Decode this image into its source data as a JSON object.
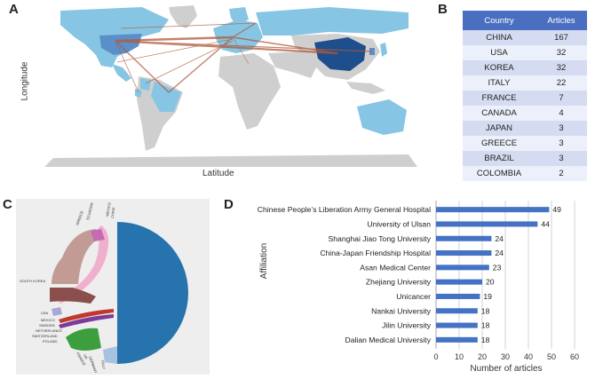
{
  "panels": {
    "a": "A",
    "b": "B",
    "c": "C",
    "d": "D"
  },
  "map": {
    "xlabel": "Latitude",
    "ylabel": "Longitude",
    "colors": {
      "land": "#cfcfcf",
      "highlight": "#86c5e3",
      "mid": "#5b8fc9",
      "dark": "#1f4e8c",
      "link": "#b05a3c"
    }
  },
  "table": {
    "headers": [
      "Country",
      "Articles"
    ],
    "rows": [
      [
        "CHINA",
        "167"
      ],
      [
        "USA",
        "32"
      ],
      [
        "KOREA",
        "32"
      ],
      [
        "ITALY",
        "22"
      ],
      [
        "FRANCE",
        "7"
      ],
      [
        "CANADA",
        "4"
      ],
      [
        "JAPAN",
        "3"
      ],
      [
        "GREECE",
        "3"
      ],
      [
        "BRAZIL",
        "3"
      ],
      [
        "COLOMBIA",
        "2"
      ]
    ]
  },
  "chord": {
    "labels": [
      "SOUTH KOREA",
      "GREECE",
      "ECUADOR",
      "MEXICO",
      "CHINA",
      "USA",
      "MEXICO",
      "SWEDEN",
      "NETHERLANDS",
      "SWITZERLAND",
      "POLAND",
      "FRANCE",
      "UK",
      "GERMANY",
      "ITALY"
    ],
    "colors": {
      "china": "#2673ad",
      "korea": "#c29c94",
      "pink": "#f0b0cd",
      "magenta": "#c46bb3",
      "maroon": "#8a4f4c",
      "green": "#3d9e3d",
      "lightblue": "#a7c1e0"
    }
  },
  "chart_data": {
    "type": "bar",
    "orientation": "horizontal",
    "ylabel": "Affiliation",
    "xlabel": "Number of articles",
    "xlim": [
      0,
      60
    ],
    "xticks": [
      0,
      10,
      20,
      30,
      40,
      50,
      60
    ],
    "categories": [
      "Chinese People’s Liberation Army General Hospital",
      "University of Ulsan",
      "Shanghai Jiao Tong University",
      "China-Japan Friendship Hospital",
      "Asan Medical Center",
      "Zhejiang University",
      "Unicancer",
      "Nankai University",
      "Jilin University",
      "Dalian Medical University"
    ],
    "values": [
      49,
      44,
      24,
      24,
      23,
      20,
      19,
      18,
      18,
      18
    ],
    "bar_color": "#4472c4"
  }
}
